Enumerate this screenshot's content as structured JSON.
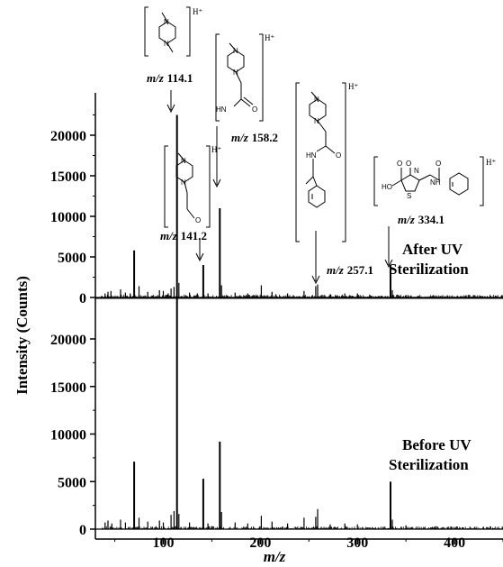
{
  "chart_data": [
    {
      "type": "line",
      "panel": "top",
      "series": [
        {
          "name": "After UV Sterilization",
          "peaks": [
            {
              "x": 40,
              "y": 500
            },
            {
              "x": 43,
              "y": 700
            },
            {
              "x": 46,
              "y": 800
            },
            {
              "x": 56,
              "y": 1000
            },
            {
              "x": 61,
              "y": 600
            },
            {
              "x": 66,
              "y": 500
            },
            {
              "x": 70,
              "y": 5800
            },
            {
              "x": 75,
              "y": 1400
            },
            {
              "x": 84,
              "y": 700
            },
            {
              "x": 96,
              "y": 900
            },
            {
              "x": 100,
              "y": 800
            },
            {
              "x": 105,
              "y": 500
            },
            {
              "x": 108,
              "y": 1100
            },
            {
              "x": 111,
              "y": 1300
            },
            {
              "x": 114.1,
              "y": 22500
            },
            {
              "x": 116,
              "y": 1800
            },
            {
              "x": 127,
              "y": 600
            },
            {
              "x": 135,
              "y": 500
            },
            {
              "x": 141.2,
              "y": 4000
            },
            {
              "x": 146,
              "y": 500
            },
            {
              "x": 158.2,
              "y": 11000
            },
            {
              "x": 160,
              "y": 1500
            },
            {
              "x": 174,
              "y": 600
            },
            {
              "x": 187,
              "y": 500
            },
            {
              "x": 201,
              "y": 1500
            },
            {
              "x": 212,
              "y": 700
            },
            {
              "x": 216,
              "y": 400
            },
            {
              "x": 228,
              "y": 500
            },
            {
              "x": 245,
              "y": 800
            },
            {
              "x": 257.1,
              "y": 1400
            },
            {
              "x": 259,
              "y": 1600
            },
            {
              "x": 272,
              "y": 400
            },
            {
              "x": 287,
              "y": 500
            },
            {
              "x": 300,
              "y": 500
            },
            {
              "x": 334.1,
              "y": 3700
            },
            {
              "x": 336,
              "y": 900
            },
            {
              "x": 350,
              "y": 300
            }
          ]
        }
      ],
      "xlim": [
        30,
        450
      ],
      "ylim": [
        0,
        25000
      ],
      "yticks": [
        0,
        5000,
        10000,
        15000,
        20000
      ],
      "annotations": [
        {
          "label_prefix": "m/z",
          "label_value": "114.1",
          "x": 114.1,
          "ion": "H⁺"
        },
        {
          "label_prefix": "m/z",
          "label_value": "141.2",
          "x": 141.2,
          "ion": "H⁺"
        },
        {
          "label_prefix": "m/z",
          "label_value": "158.2",
          "x": 158.2,
          "ion": "H⁺"
        },
        {
          "label_prefix": "m/z",
          "label_value": "257.1",
          "x": 257.1,
          "ion": "H⁺"
        },
        {
          "label_prefix": "m/z",
          "label_value": "334.1",
          "x": 334.1,
          "ion": "H⁺"
        }
      ],
      "panel_label": [
        "After UV",
        "Sterilization"
      ]
    },
    {
      "type": "line",
      "panel": "bottom",
      "series": [
        {
          "name": "Before UV Sterilization",
          "peaks": [
            {
              "x": 40,
              "y": 700
            },
            {
              "x": 43,
              "y": 900
            },
            {
              "x": 47,
              "y": 600
            },
            {
              "x": 56,
              "y": 1000
            },
            {
              "x": 61,
              "y": 700
            },
            {
              "x": 70,
              "y": 7100
            },
            {
              "x": 75,
              "y": 1200
            },
            {
              "x": 84,
              "y": 800
            },
            {
              "x": 96,
              "y": 900
            },
            {
              "x": 100,
              "y": 700
            },
            {
              "x": 108,
              "y": 1500
            },
            {
              "x": 111,
              "y": 1900
            },
            {
              "x": 114.1,
              "y": 24500
            },
            {
              "x": 116,
              "y": 1600
            },
            {
              "x": 127,
              "y": 700
            },
            {
              "x": 141.2,
              "y": 5300
            },
            {
              "x": 146,
              "y": 600
            },
            {
              "x": 158.2,
              "y": 9200
            },
            {
              "x": 160,
              "y": 1800
            },
            {
              "x": 174,
              "y": 700
            },
            {
              "x": 187,
              "y": 600
            },
            {
              "x": 201,
              "y": 1400
            },
            {
              "x": 212,
              "y": 800
            },
            {
              "x": 228,
              "y": 600
            },
            {
              "x": 245,
              "y": 1200
            },
            {
              "x": 257.1,
              "y": 1300
            },
            {
              "x": 259,
              "y": 2100
            },
            {
              "x": 272,
              "y": 500
            },
            {
              "x": 287,
              "y": 600
            },
            {
              "x": 300,
              "y": 500
            },
            {
              "x": 334.1,
              "y": 5000
            },
            {
              "x": 336,
              "y": 1000
            },
            {
              "x": 350,
              "y": 400
            },
            {
              "x": 380,
              "y": 300
            }
          ]
        }
      ],
      "xlim": [
        30,
        450
      ],
      "ylim": [
        0,
        25000
      ],
      "yticks": [
        0,
        5000,
        10000,
        15000,
        20000
      ],
      "xticks": [
        100,
        200,
        300,
        400
      ],
      "panel_label": [
        "Before UV",
        "Sterilization"
      ]
    }
  ],
  "xlabel": "m/z",
  "ylabel": "Intensity (Counts)",
  "ion_label": "H⁺",
  "struct_labels": {
    "n": "N",
    "nh": "NH",
    "hn": "HN",
    "o": "O",
    "s": "S",
    "ho": "HO"
  }
}
